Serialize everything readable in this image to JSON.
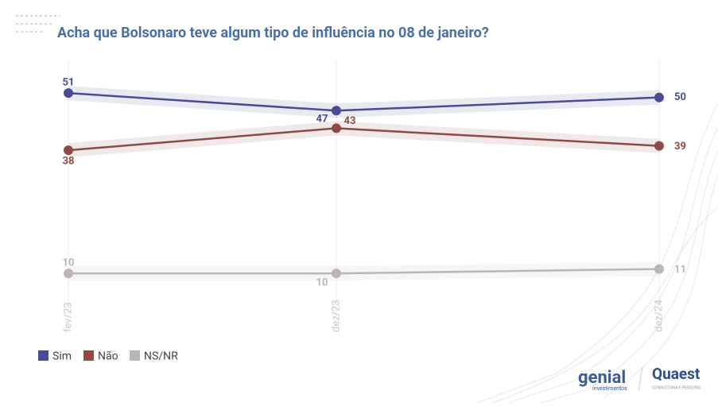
{
  "chart_data": {
    "type": "line",
    "title": "Acha que Bolsonaro teve algum tipo de influência no 08 de janeiro?",
    "categories": [
      "fev/23",
      "dez/23",
      "dez/24"
    ],
    "series": [
      {
        "name": "Sim",
        "color": "#4b4a95",
        "values": [
          51,
          47,
          50
        ]
      },
      {
        "name": "Não",
        "color": "#8e4a46",
        "values": [
          38,
          43,
          39
        ]
      },
      {
        "name": "NS/NR",
        "color": "#bdb5b3",
        "values": [
          10,
          10,
          11
        ]
      }
    ],
    "ylim": [
      0,
      55
    ],
    "grid": true,
    "legend": "bottom-left"
  },
  "logos": {
    "genial": "genial",
    "genial_sub": "investimentos",
    "quaest": "Quaest",
    "quaest_sub": "CONSULTORIA E PESQUISA"
  }
}
